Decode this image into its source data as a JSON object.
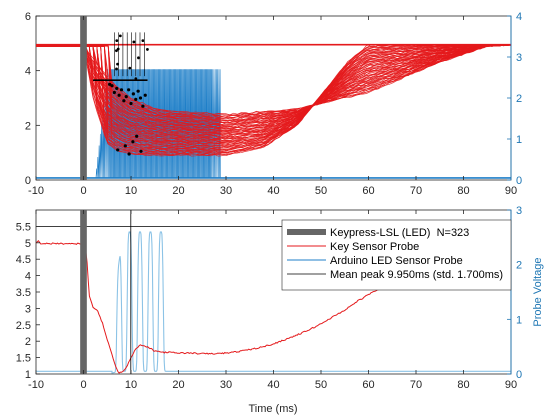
{
  "colors": {
    "key_sensor": "#e41a1c",
    "led_sensor": "#1f7fc8",
    "led_sensor_light": "#8cc3e6",
    "keypress": "#666666",
    "mean_peak": "#000000",
    "right_axis": "#1f77b4"
  },
  "chart_data": [
    {
      "type": "line",
      "title": "",
      "xlabel": "",
      "ylabel": "",
      "y2label": "",
      "xlim": [
        -10,
        90
      ],
      "ylim": [
        0,
        6
      ],
      "y2lim": [
        0,
        4
      ],
      "x_ticks": [
        -10,
        0,
        10,
        20,
        30,
        40,
        50,
        60,
        70,
        80,
        90
      ],
      "y_ticks": [
        0,
        2,
        4,
        6
      ],
      "y2_ticks": [
        0,
        1,
        2,
        3,
        4
      ],
      "grid": false,
      "legend": "none",
      "series": [
        {
          "description_role": "key_sensor_envelope_high",
          "x": [
            -10,
            0,
            3,
            6,
            10,
            15,
            20,
            30,
            45,
            60,
            75,
            85,
            90
          ],
          "y": [
            4.9,
            4.9,
            4.3,
            3.6,
            3.0,
            2.6,
            2.5,
            2.4,
            2.6,
            3.2,
            4.3,
            4.9,
            4.95
          ]
        },
        {
          "description_role": "key_sensor_envelope_low",
          "x": [
            -10,
            0,
            2,
            5,
            8,
            12,
            20,
            30,
            38,
            45,
            50,
            56,
            60
          ],
          "y": [
            4.9,
            4.9,
            3.0,
            1.3,
            1.0,
            0.9,
            0.9,
            0.9,
            1.2,
            2.0,
            3.1,
            4.4,
            4.95
          ]
        },
        {
          "description_role": "led_sensor_on_band",
          "x": [
            -10,
            3,
            6,
            26,
            29,
            90
          ],
          "y": [
            0.05,
            0.05,
            2.7,
            2.7,
            0.05,
            0.05
          ]
        },
        {
          "description_role": "peak_markers",
          "x": [
            5.5,
            6,
            6.5,
            7,
            7.5,
            8,
            8.5,
            9,
            9.5,
            10,
            10.5,
            11,
            11.5,
            12,
            12.5,
            13,
            7.2,
            8.8,
            9.6,
            10.4,
            11.2,
            12.1
          ],
          "y": [
            3.5,
            3.45,
            3.2,
            3.35,
            3.1,
            3.3,
            2.9,
            3.05,
            3.3,
            2.8,
            3.15,
            2.95,
            3.25,
            3.0,
            2.7,
            3.1,
            1.1,
            1.25,
            0.95,
            1.4,
            1.6,
            1.05
          ]
        }
      ]
    },
    {
      "type": "line",
      "title": "",
      "xlabel": "Time (ms)",
      "ylabel": "",
      "y2label": "Probe Voltage",
      "xlim": [
        -10,
        90
      ],
      "ylim": [
        1,
        6
      ],
      "y2lim": [
        0,
        3
      ],
      "x_ticks": [
        -10,
        0,
        10,
        20,
        30,
        40,
        50,
        60,
        70,
        80,
        90
      ],
      "y_ticks": [
        1,
        1.5,
        2,
        2.5,
        3,
        3.5,
        4,
        4.5,
        5,
        5.5
      ],
      "y2_ticks": [
        0,
        1,
        2,
        3
      ],
      "grid": false,
      "legend": "top-right",
      "series": [
        {
          "name": "Keypress-LSL (LED)  N=323",
          "x": [
            0,
            0
          ],
          "y": [
            1,
            6
          ]
        },
        {
          "name": "Key Sensor Probe",
          "x": [
            -10,
            -9.5,
            -9,
            0,
            0.6,
            1.2,
            2,
            3,
            4,
            5,
            6,
            6.8,
            7.4,
            8,
            9,
            10,
            11,
            12,
            13,
            14,
            15,
            16,
            17,
            18,
            19,
            20,
            22,
            25,
            28,
            31,
            34,
            37,
            40,
            43,
            46,
            49,
            52,
            55,
            58,
            61,
            64,
            67,
            70,
            72
          ],
          "y": [
            5.0,
            5.05,
            4.98,
            4.97,
            4.7,
            3.4,
            3.05,
            2.9,
            2.55,
            2.05,
            1.6,
            1.2,
            1.05,
            1.05,
            1.2,
            1.5,
            1.78,
            1.88,
            1.85,
            1.78,
            1.7,
            1.68,
            1.66,
            1.66,
            1.65,
            1.64,
            1.64,
            1.62,
            1.62,
            1.65,
            1.72,
            1.8,
            1.92,
            2.08,
            2.25,
            2.45,
            2.7,
            2.95,
            3.25,
            3.5,
            3.75,
            4.0,
            4.25,
            4.35
          ]
        },
        {
          "name": "Arduino LED Sensor Probe",
          "x": [
            -10,
            5,
            7,
            9,
            10.5,
            12,
            14,
            16,
            18,
            20,
            90
          ],
          "y": [
            0.05,
            0.05,
            1.2,
            2.6,
            2.6,
            2.6,
            2.6,
            2.6,
            1.5,
            0.05,
            0.05
          ]
        },
        {
          "name": "Mean peak 9.950ms (std. 1.700ms)",
          "x": [
            9.95,
            9.95
          ],
          "y": [
            1,
            6
          ]
        }
      ]
    }
  ]
}
